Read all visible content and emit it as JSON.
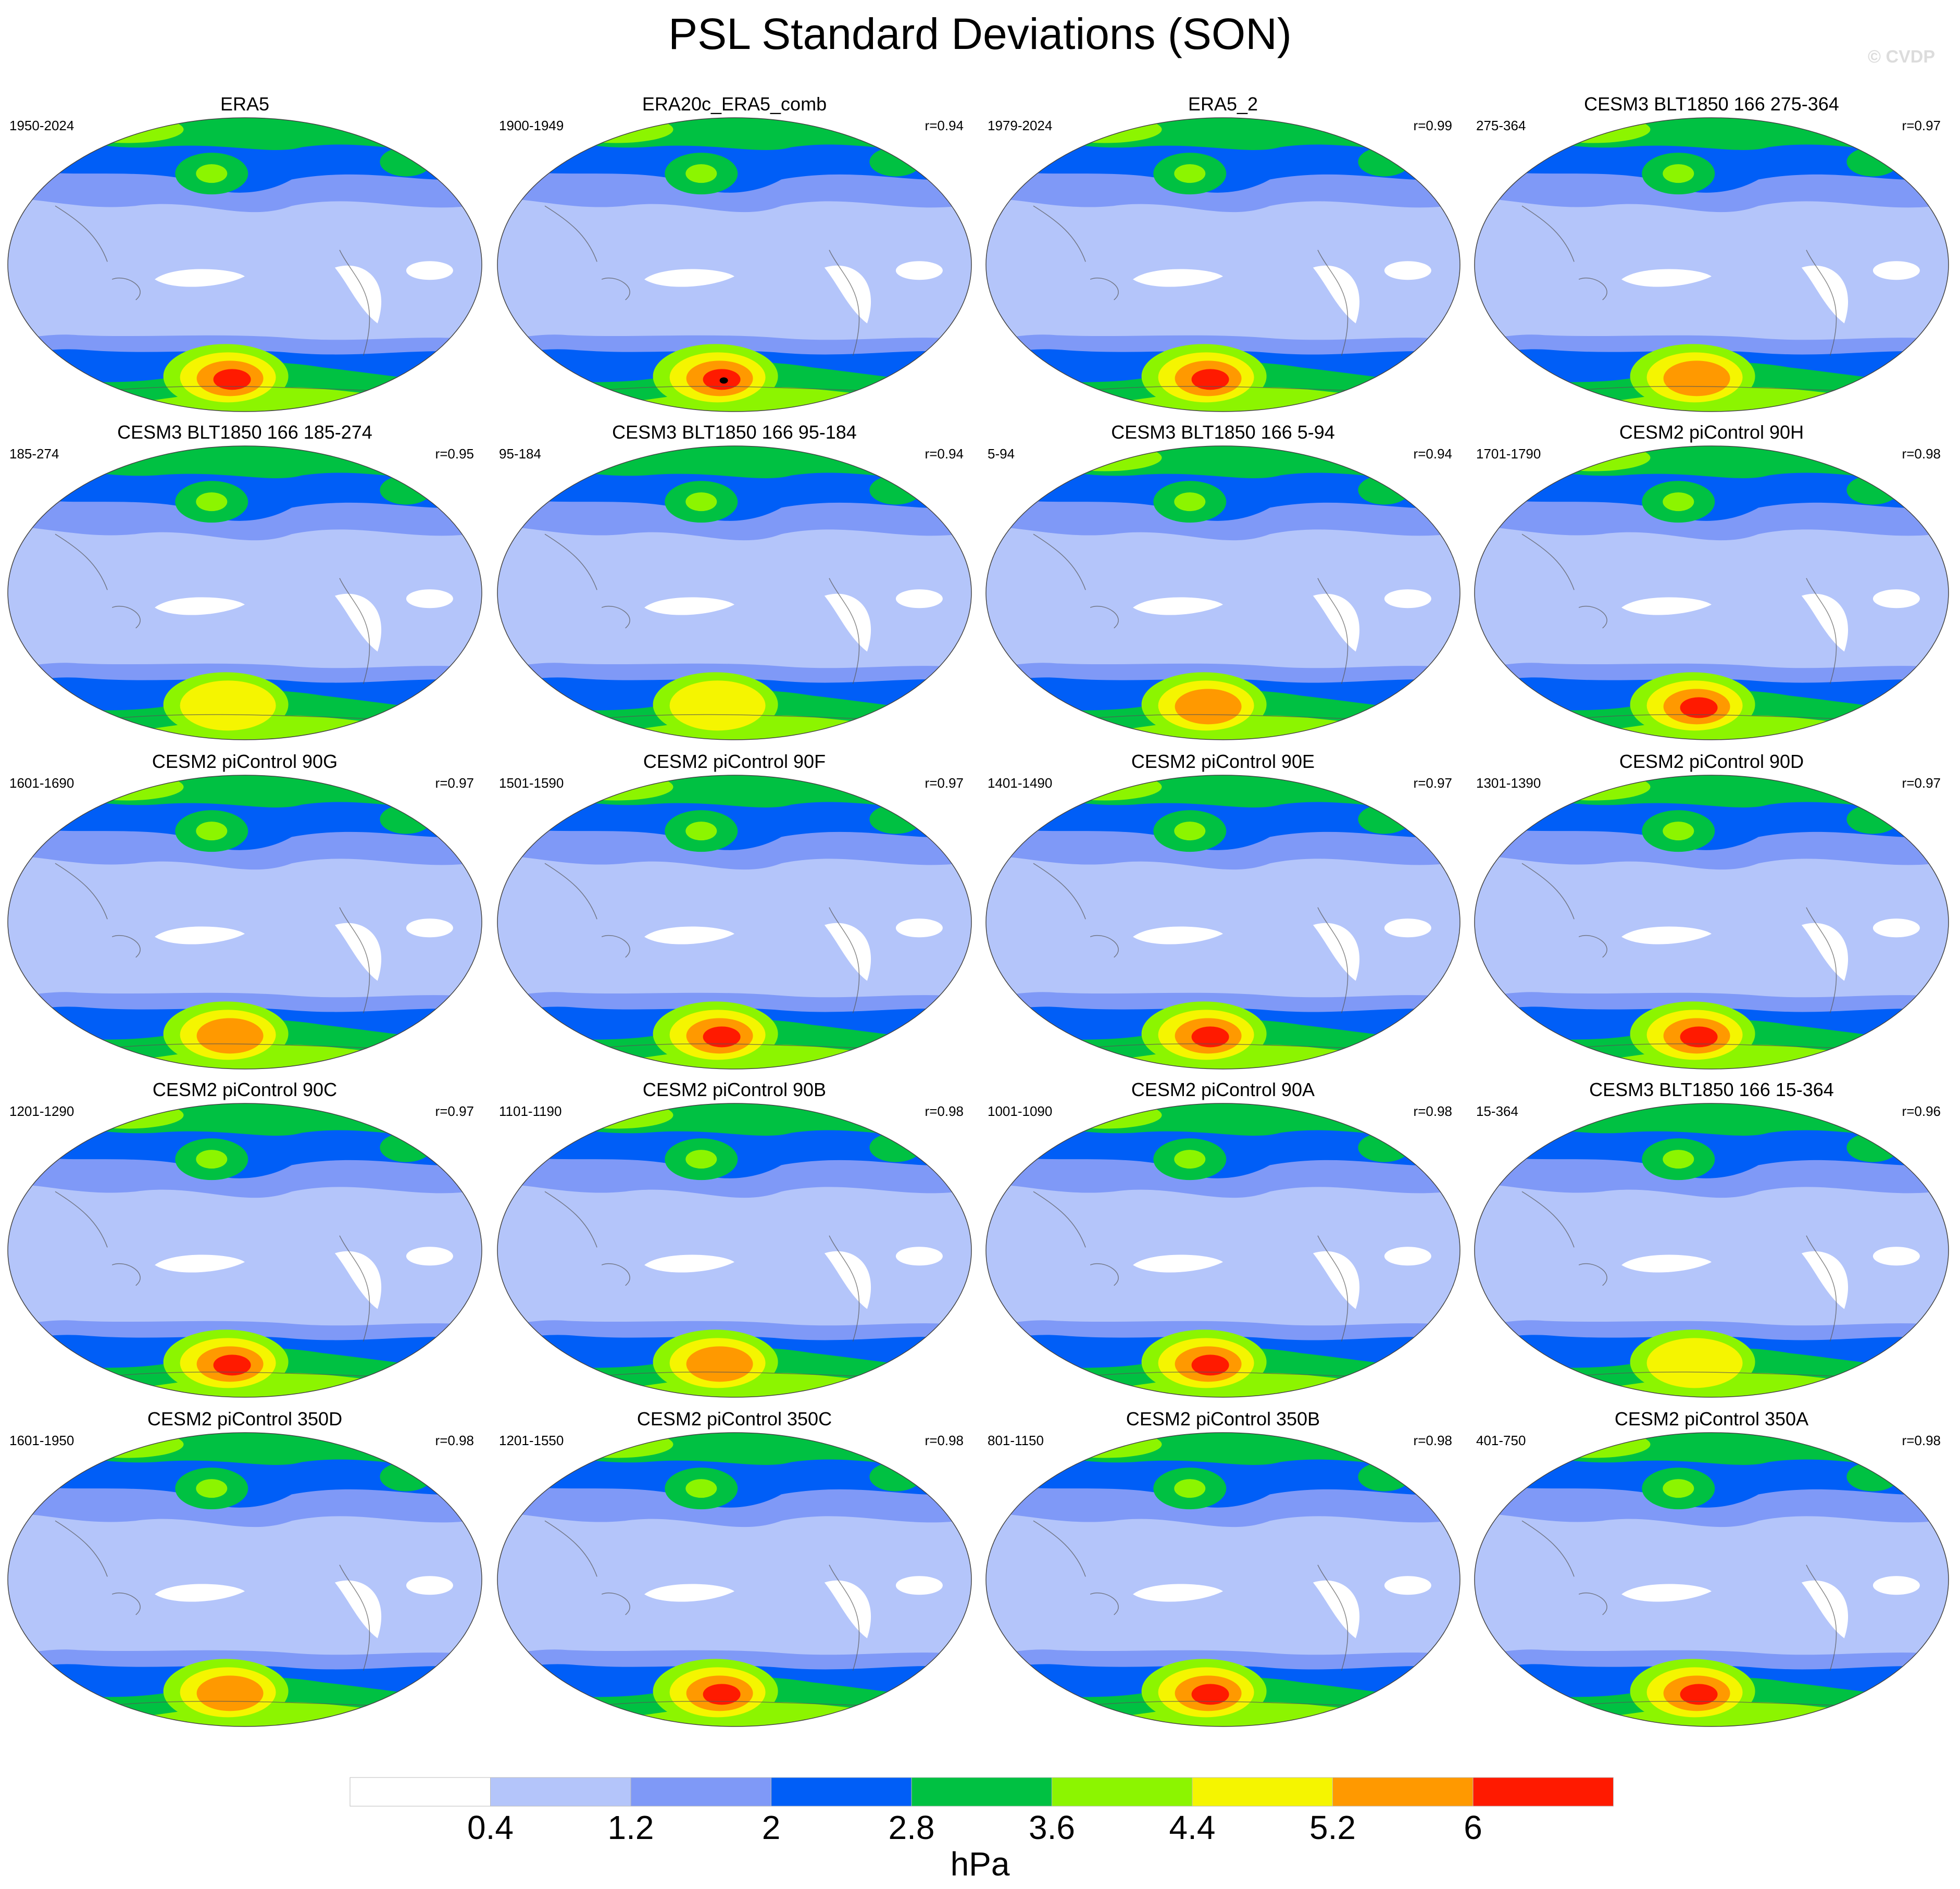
{
  "title": "PSL Standard Deviations (SON)",
  "copyright": "© CVDP",
  "units": "hPa",
  "colorbar": {
    "levels": [
      "0.4",
      "1.2",
      "2",
      "2.8",
      "3.6",
      "4.4",
      "5.2",
      "6"
    ],
    "colors": [
      "#ffffff",
      "#b4c5fa",
      "#7f99f7",
      "#005ef7",
      "#00c142",
      "#8cf500",
      "#f5f500",
      "#ff9900",
      "#ff1a00"
    ]
  },
  "chart_data": {
    "type": "heatmap",
    "title": "PSL Standard Deviations (SON)",
    "units": "hPa",
    "contour_levels": [
      0.4,
      1.2,
      2,
      2.8,
      3.6,
      4.4,
      5.2,
      6
    ],
    "panels": [
      {
        "name": "ERA5",
        "years": "1950-2024",
        "r": "",
        "max_band": 8
      },
      {
        "name": "ERA20c_ERA5_comb",
        "years": "1900-1949",
        "r": "r=0.94",
        "max_band": 9
      },
      {
        "name": "ERA5_2",
        "years": "1979-2024",
        "r": "r=0.99",
        "max_band": 8
      },
      {
        "name": "CESM3 BLT1850 166 275-364",
        "years": "275-364",
        "r": "r=0.97",
        "max_band": 7
      },
      {
        "name": "CESM3 BLT1850 166 185-274",
        "years": "185-274",
        "r": "r=0.95",
        "max_band": 6
      },
      {
        "name": "CESM3 BLT1850 166 95-184",
        "years": "95-184",
        "r": "r=0.94",
        "max_band": 6
      },
      {
        "name": "CESM3 BLT1850 166 5-94",
        "years": "5-94",
        "r": "r=0.94",
        "max_band": 7
      },
      {
        "name": "CESM2 piControl 90H",
        "years": "1701-1790",
        "r": "r=0.98",
        "max_band": 8
      },
      {
        "name": "CESM2 piControl 90G",
        "years": "1601-1690",
        "r": "r=0.97",
        "max_band": 7
      },
      {
        "name": "CESM2 piControl 90F",
        "years": "1501-1590",
        "r": "r=0.97",
        "max_band": 8
      },
      {
        "name": "CESM2 piControl 90E",
        "years": "1401-1490",
        "r": "r=0.97",
        "max_band": 8
      },
      {
        "name": "CESM2 piControl 90D",
        "years": "1301-1390",
        "r": "r=0.97",
        "max_band": 8
      },
      {
        "name": "CESM2 piControl 90C",
        "years": "1201-1290",
        "r": "r=0.97",
        "max_band": 8
      },
      {
        "name": "CESM2 piControl 90B",
        "years": "1101-1190",
        "r": "r=0.98",
        "max_band": 7
      },
      {
        "name": "CESM2 piControl 90A",
        "years": "1001-1090",
        "r": "r=0.98",
        "max_band": 8
      },
      {
        "name": "CESM3 BLT1850 166 15-364",
        "years": "15-364",
        "r": "r=0.96",
        "max_band": 6
      },
      {
        "name": "CESM2 piControl 350D",
        "years": "1601-1950",
        "r": "r=0.98",
        "max_band": 7
      },
      {
        "name": "CESM2 piControl 350C",
        "years": "1201-1550",
        "r": "r=0.98",
        "max_band": 8
      },
      {
        "name": "CESM2 piControl 350B",
        "years": "801-1150",
        "r": "r=0.98",
        "max_band": 8
      },
      {
        "name": "CESM2 piControl 350A",
        "years": "401-750",
        "r": "r=0.98",
        "max_band": 8
      }
    ]
  }
}
